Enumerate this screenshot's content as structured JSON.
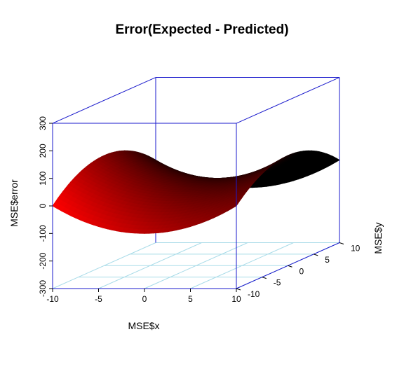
{
  "chart_data": {
    "type": "surface3d",
    "title": "Error(Expected - Predicted)",
    "xlabel": "MSE$x",
    "ylabel": "MSE$y",
    "zlabel": "MSE$error",
    "xlim": [
      -10,
      10
    ],
    "ylim": [
      -10,
      10
    ],
    "zlim": [
      -300,
      300
    ],
    "x_ticks": [
      "-10",
      "-5",
      "0",
      "5",
      "10"
    ],
    "y_ticks": [
      "-10",
      "-5",
      "0",
      "5",
      "10"
    ],
    "z_ticks": [
      "-300",
      "-200",
      "-100",
      "0",
      "100",
      "200",
      "300"
    ],
    "surface": "error = x^2 - y^2 (saddle)",
    "surface_samples": {
      "x": [
        -10,
        -5,
        0,
        5,
        10
      ],
      "y": [
        -10,
        -5,
        0,
        5,
        10
      ],
      "error_at_x_-10": [
        0,
        75,
        100,
        75,
        0
      ],
      "error_at_x_0": [
        -100,
        -25,
        0,
        -25,
        -100
      ],
      "error_at_x_10": [
        0,
        75,
        100,
        75,
        0
      ]
    },
    "colors": {
      "box": "#1a1acc",
      "grid": "#a8dbe8",
      "surface_front": "#ff0000",
      "surface_back": "#000000"
    }
  }
}
